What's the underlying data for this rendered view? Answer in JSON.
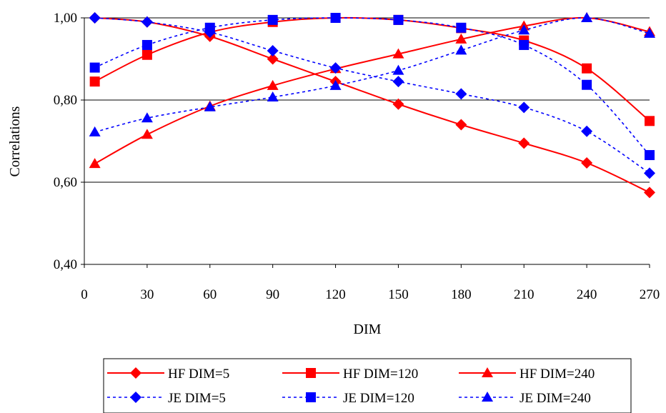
{
  "chart_data": {
    "type": "line",
    "xlabel": "DIM",
    "ylabel": "Correlations",
    "x": [
      5,
      30,
      60,
      90,
      120,
      150,
      180,
      210,
      240,
      270
    ],
    "xlim": [
      0,
      270
    ],
    "ylim": [
      0.4,
      1.0
    ],
    "x_ticks": [
      "0",
      "30",
      "60",
      "90",
      "120",
      "150",
      "180",
      "210",
      "240",
      "270"
    ],
    "y_ticks": [
      "0,40",
      "0,60",
      "0,80",
      "1,00"
    ],
    "y_tick_values": [
      0.4,
      0.6,
      0.8,
      1.0
    ],
    "grid": "horizontal major",
    "legend_position": "bottom",
    "series": [
      {
        "name": "HF DIM=5",
        "color": "#ff0000",
        "style": "solid",
        "marker": "diamond",
        "values": [
          1.0,
          0.99,
          0.955,
          0.9,
          0.845,
          0.79,
          0.74,
          0.695,
          0.647,
          0.575
        ]
      },
      {
        "name": "HF DIM=120",
        "color": "#ff0000",
        "style": "solid",
        "marker": "square",
        "values": [
          0.845,
          0.91,
          0.965,
          0.99,
          1.0,
          0.995,
          0.975,
          0.945,
          0.877,
          0.749
        ]
      },
      {
        "name": "HF DIM=240",
        "color": "#ff0000",
        "style": "solid",
        "marker": "triangle",
        "values": [
          0.645,
          0.716,
          0.785,
          0.835,
          0.876,
          0.912,
          0.948,
          0.98,
          1.0,
          0.966
        ]
      },
      {
        "name": "JE DIM=5",
        "color": "#0000ff",
        "style": "dashed",
        "marker": "diamond",
        "values": [
          1.0,
          0.99,
          0.965,
          0.92,
          0.878,
          0.845,
          0.815,
          0.782,
          0.724,
          0.622
        ]
      },
      {
        "name": "JE DIM=120",
        "color": "#0000ff",
        "style": "dashed",
        "marker": "square",
        "values": [
          0.879,
          0.934,
          0.976,
          0.995,
          1.0,
          0.995,
          0.976,
          0.934,
          0.837,
          0.666
        ]
      },
      {
        "name": "JE DIM=240",
        "color": "#0000ff",
        "style": "dashed",
        "marker": "triangle",
        "values": [
          0.722,
          0.756,
          0.783,
          0.807,
          0.835,
          0.872,
          0.921,
          0.97,
          1.0,
          0.962
        ]
      }
    ]
  }
}
